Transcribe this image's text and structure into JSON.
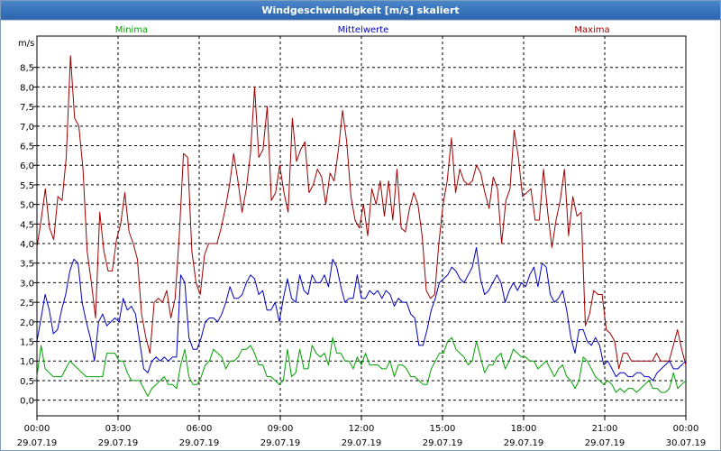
{
  "window": {
    "title": "Windgeschwindigkeit [m/s] skaliert"
  },
  "chart_data": {
    "type": "line",
    "title": "Windgeschwindigkeit [m/s] skaliert",
    "ylabel": "m/s",
    "xlabel": "",
    "ylim": [
      -0.4,
      9.3
    ],
    "xlim": [
      0,
      24
    ],
    "grid": true,
    "yticks": [
      0,
      0.5,
      1,
      1.5,
      2,
      2.5,
      3,
      3.5,
      4,
      4.5,
      5,
      5.5,
      6,
      6.5,
      7,
      7.5,
      8,
      8.5
    ],
    "ytick_labels": [
      "0,0",
      "0,5",
      "1,0",
      "1,5",
      "2,0",
      "2,5",
      "3,0",
      "3,5",
      "4,0",
      "4,5",
      "5,0",
      "5,5",
      "6,0",
      "6,5",
      "7,0",
      "7,5",
      "8,0",
      "8,5"
    ],
    "xticks": [
      {
        "x": 0,
        "time": "00:00",
        "date": "29.07.19"
      },
      {
        "x": 3,
        "time": "03:00",
        "date": "29.07.19"
      },
      {
        "x": 6,
        "time": "06:00",
        "date": "29.07.19"
      },
      {
        "x": 9,
        "time": "09:00",
        "date": "29.07.19"
      },
      {
        "x": 12,
        "time": "12:00",
        "date": "29.07.19"
      },
      {
        "x": 15,
        "time": "15:00",
        "date": "29.07.19"
      },
      {
        "x": 18,
        "time": "18:00",
        "date": "29.07.19"
      },
      {
        "x": 21,
        "time": "21:00",
        "date": "29.07.19"
      },
      {
        "x": 24,
        "time": "00:00",
        "date": "30.07.19"
      }
    ],
    "legend": [
      {
        "name": "Minima",
        "color": "#00a000",
        "position": "top-left"
      },
      {
        "name": "Mittelwerte",
        "color": "#0000c0",
        "position": "top-center"
      },
      {
        "name": "Maxima",
        "color": "#a00000",
        "position": "top-right"
      }
    ],
    "x_step_hours": 0.1667,
    "series": [
      {
        "name": "Maxima",
        "color": "#a00000",
        "values": [
          3.9,
          4.6,
          5.4,
          4.4,
          4.1,
          5.2,
          5.1,
          6.2,
          8.8,
          7.2,
          7.0,
          5.9,
          3.8,
          3.0,
          2.1,
          4.8,
          3.8,
          3.3,
          3.3,
          4.1,
          4.5,
          5.3,
          4.3,
          4.0,
          3.6,
          2.2,
          1.6,
          1.2,
          2.5,
          2.6,
          2.5,
          2.8,
          2.1,
          2.6,
          4.2,
          6.3,
          6.2,
          3.8,
          3.0,
          2.7,
          3.7,
          4.0,
          4.0,
          4.0,
          4.4,
          4.9,
          5.5,
          6.3,
          5.6,
          4.8,
          5.4,
          6.3,
          8.0,
          6.2,
          6.4,
          7.5,
          5.1,
          5.3,
          6.0,
          5.3,
          4.8,
          7.2,
          6.1,
          6.4,
          6.6,
          5.3,
          5.5,
          5.9,
          5.7,
          5.0,
          5.8,
          5.6,
          6.4,
          7.4,
          6.6,
          5.2,
          4.6,
          4.4,
          5.0,
          4.2,
          5.4,
          5.0,
          5.6,
          4.7,
          5.6,
          4.6,
          5.9,
          4.4,
          4.3,
          4.9,
          5.3,
          5.0,
          4.2,
          2.8,
          2.6,
          2.7,
          4.0,
          5.0,
          5.6,
          6.7,
          5.3,
          5.9,
          5.6,
          5.5,
          5.6,
          6.0,
          5.8,
          5.3,
          4.9,
          5.7,
          5.4,
          4.0,
          5.1,
          5.4,
          6.9,
          6.2,
          5.2,
          5.3,
          5.4,
          4.6,
          4.6,
          5.9,
          4.8,
          3.9,
          4.6,
          5.1,
          5.9,
          4.2,
          5.2,
          4.7,
          4.8,
          1.9,
          2.2,
          2.8,
          2.7,
          2.7,
          1.8,
          1.7,
          1.5,
          0.8,
          1.2,
          1.2,
          1.0,
          1.0,
          1.0,
          1.0,
          1.0,
          1.0,
          1.2,
          1.0,
          1.0,
          1.0,
          1.4,
          1.8,
          1.3,
          0.9
        ]
      },
      {
        "name": "Mittelwerte",
        "color": "#0000c0",
        "values": [
          1.5,
          2.1,
          2.7,
          2.3,
          1.7,
          1.8,
          2.3,
          2.7,
          3.3,
          3.6,
          3.5,
          2.5,
          2.0,
          1.6,
          1.0,
          2.0,
          2.2,
          1.9,
          2.0,
          2.1,
          2.0,
          2.6,
          2.3,
          2.4,
          2.2,
          1.5,
          0.8,
          0.7,
          1.0,
          1.1,
          1.0,
          1.1,
          1.0,
          1.1,
          1.1,
          3.2,
          3.0,
          1.6,
          1.3,
          1.3,
          1.6,
          2.0,
          2.1,
          2.1,
          2.0,
          2.2,
          2.5,
          2.9,
          2.6,
          2.6,
          2.7,
          3.0,
          3.2,
          3.1,
          2.7,
          2.8,
          2.3,
          2.3,
          2.5,
          2.0,
          2.6,
          3.1,
          2.6,
          2.5,
          3.2,
          2.8,
          2.7,
          3.2,
          3.0,
          3.0,
          3.2,
          2.9,
          3.6,
          3.4,
          2.9,
          2.5,
          2.6,
          2.6,
          3.2,
          2.6,
          2.6,
          2.8,
          2.7,
          2.8,
          2.6,
          2.8,
          2.7,
          2.4,
          2.6,
          2.5,
          2.5,
          2.2,
          2.1,
          1.4,
          1.4,
          1.8,
          2.3,
          2.6,
          3.0,
          3.1,
          3.2,
          3.4,
          3.3,
          3.1,
          3.0,
          3.2,
          3.4,
          3.9,
          3.1,
          2.7,
          2.8,
          3.0,
          3.2,
          3.0,
          2.5,
          2.8,
          3.0,
          2.8,
          3.0,
          2.9,
          3.2,
          3.4,
          2.9,
          3.5,
          3.4,
          2.7,
          2.5,
          2.6,
          2.8,
          2.3,
          1.6,
          1.2,
          1.8,
          1.8,
          1.5,
          1.4,
          1.6,
          1.4,
          0.9,
          1.0,
          0.8,
          0.6,
          0.7,
          0.7,
          0.6,
          0.6,
          0.7,
          0.7,
          0.6,
          0.6,
          0.5,
          0.7,
          0.8,
          0.9,
          1.0,
          0.8,
          0.8,
          0.9,
          1.0
        ]
      },
      {
        "name": "Minima",
        "color": "#00a000",
        "values": [
          0.6,
          1.4,
          0.8,
          0.7,
          0.6,
          0.6,
          0.6,
          0.8,
          1.0,
          0.9,
          0.8,
          0.7,
          0.6,
          0.6,
          0.6,
          0.6,
          0.6,
          1.2,
          1.2,
          1.2,
          1.0,
          1.0,
          0.7,
          0.5,
          0.5,
          0.5,
          0.3,
          0.1,
          0.3,
          0.4,
          0.5,
          0.6,
          0.4,
          0.4,
          0.3,
          0.9,
          1.3,
          0.6,
          0.4,
          0.4,
          0.6,
          0.9,
          1.0,
          1.3,
          1.2,
          1.1,
          0.8,
          1.0,
          1.0,
          1.1,
          1.3,
          1.3,
          1.4,
          1.2,
          0.9,
          0.9,
          0.6,
          0.6,
          0.5,
          0.4,
          0.5,
          1.3,
          0.6,
          0.7,
          1.3,
          0.8,
          0.8,
          1.4,
          1.2,
          1.1,
          1.2,
          0.9,
          1.6,
          1.2,
          1.2,
          1.0,
          1.0,
          0.8,
          1.1,
          0.9,
          1.2,
          0.9,
          0.9,
          0.9,
          0.8,
          0.8,
          1.0,
          0.6,
          0.9,
          0.9,
          0.8,
          0.6,
          0.6,
          0.5,
          0.4,
          0.4,
          0.8,
          1.0,
          1.2,
          1.2,
          1.5,
          1.6,
          1.3,
          1.2,
          1.1,
          0.9,
          1.0,
          1.5,
          1.1,
          0.7,
          0.9,
          0.9,
          1.1,
          1.2,
          0.8,
          1.0,
          1.3,
          1.2,
          1.1,
          1.1,
          1.0,
          1.0,
          0.8,
          0.9,
          1.0,
          0.8,
          0.6,
          0.8,
          0.9,
          0.6,
          0.5,
          0.3,
          0.5,
          1.1,
          1.0,
          0.8,
          0.6,
          0.5,
          0.4,
          0.5,
          0.4,
          0.2,
          0.3,
          0.2,
          0.3,
          0.3,
          0.2,
          0.3,
          0.4,
          0.5,
          0.3,
          0.3,
          0.2,
          0.2,
          0.3,
          0.7,
          0.3,
          0.4,
          0.5
        ]
      }
    ]
  }
}
